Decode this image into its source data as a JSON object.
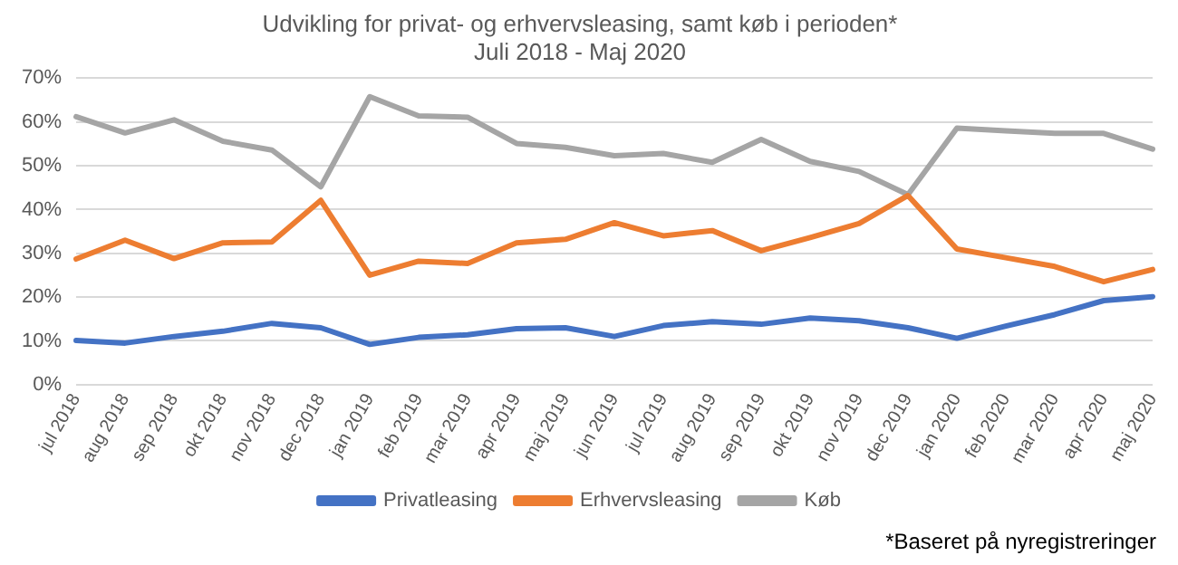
{
  "chart_data": {
    "type": "line",
    "title": "Udvikling for privat- og erhvervsleasing, samt køb i perioden*",
    "subtitle": "Juli 2018 - Maj 2020",
    "categories": [
      "jul 2018",
      "aug 2018",
      "sep 2018",
      "okt 2018",
      "nov 2018",
      "dec 2018",
      "jan 2019",
      "feb 2019",
      "mar 2019",
      "apr 2019",
      "maj 2019",
      "jun 2019",
      "jul 2019",
      "aug 2019",
      "sep 2019",
      "okt 2019",
      "nov 2019",
      "dec 2019",
      "jan 2020",
      "feb 2020",
      "mar 2020",
      "apr 2020",
      "maj 2020"
    ],
    "series": [
      {
        "name": "Privatleasing",
        "color": "#4472c4",
        "values": [
          10.1,
          9.5,
          11,
          12.2,
          14,
          13,
          9.2,
          10.8,
          11.4,
          12.8,
          13,
          11,
          13.5,
          14.4,
          13.8,
          15.2,
          14.6,
          13,
          10.6,
          13.4,
          16,
          19.2,
          20.1
        ]
      },
      {
        "name": "Erhvervsleasing",
        "color": "#ed7d31",
        "values": [
          28.7,
          33,
          28.8,
          32.4,
          32.6,
          42.1,
          25,
          28.2,
          27.7,
          32.4,
          33.2,
          37,
          34,
          35.2,
          30.6,
          33.6,
          36.8,
          43.2,
          31,
          29,
          27,
          23.5,
          26.3
        ]
      },
      {
        "name": "Køb",
        "color": "#a5a5a5",
        "values": [
          61.2,
          57.5,
          60.5,
          55.6,
          53.6,
          45.2,
          65.8,
          61.4,
          61.1,
          55.1,
          54.2,
          52.3,
          52.8,
          50.8,
          56,
          51,
          48.7,
          43.4,
          58.6,
          58,
          57.4,
          57.4,
          53.8
        ]
      }
    ],
    "ylim": [
      0,
      70
    ],
    "yticks": [
      {
        "value": 0,
        "label": "0%"
      },
      {
        "value": 10,
        "label": "10%"
      },
      {
        "value": 20,
        "label": "20%"
      },
      {
        "value": 30,
        "label": "30%"
      },
      {
        "value": 40,
        "label": "40%"
      },
      {
        "value": 50,
        "label": "50%"
      },
      {
        "value": 60,
        "label": "60%"
      },
      {
        "value": 70,
        "label": "70%"
      }
    ],
    "grid": "y",
    "legend": "bottom",
    "marker": "none",
    "line_style": "solid",
    "annotations": [
      "*Baseret på nyregistreringer"
    ]
  }
}
